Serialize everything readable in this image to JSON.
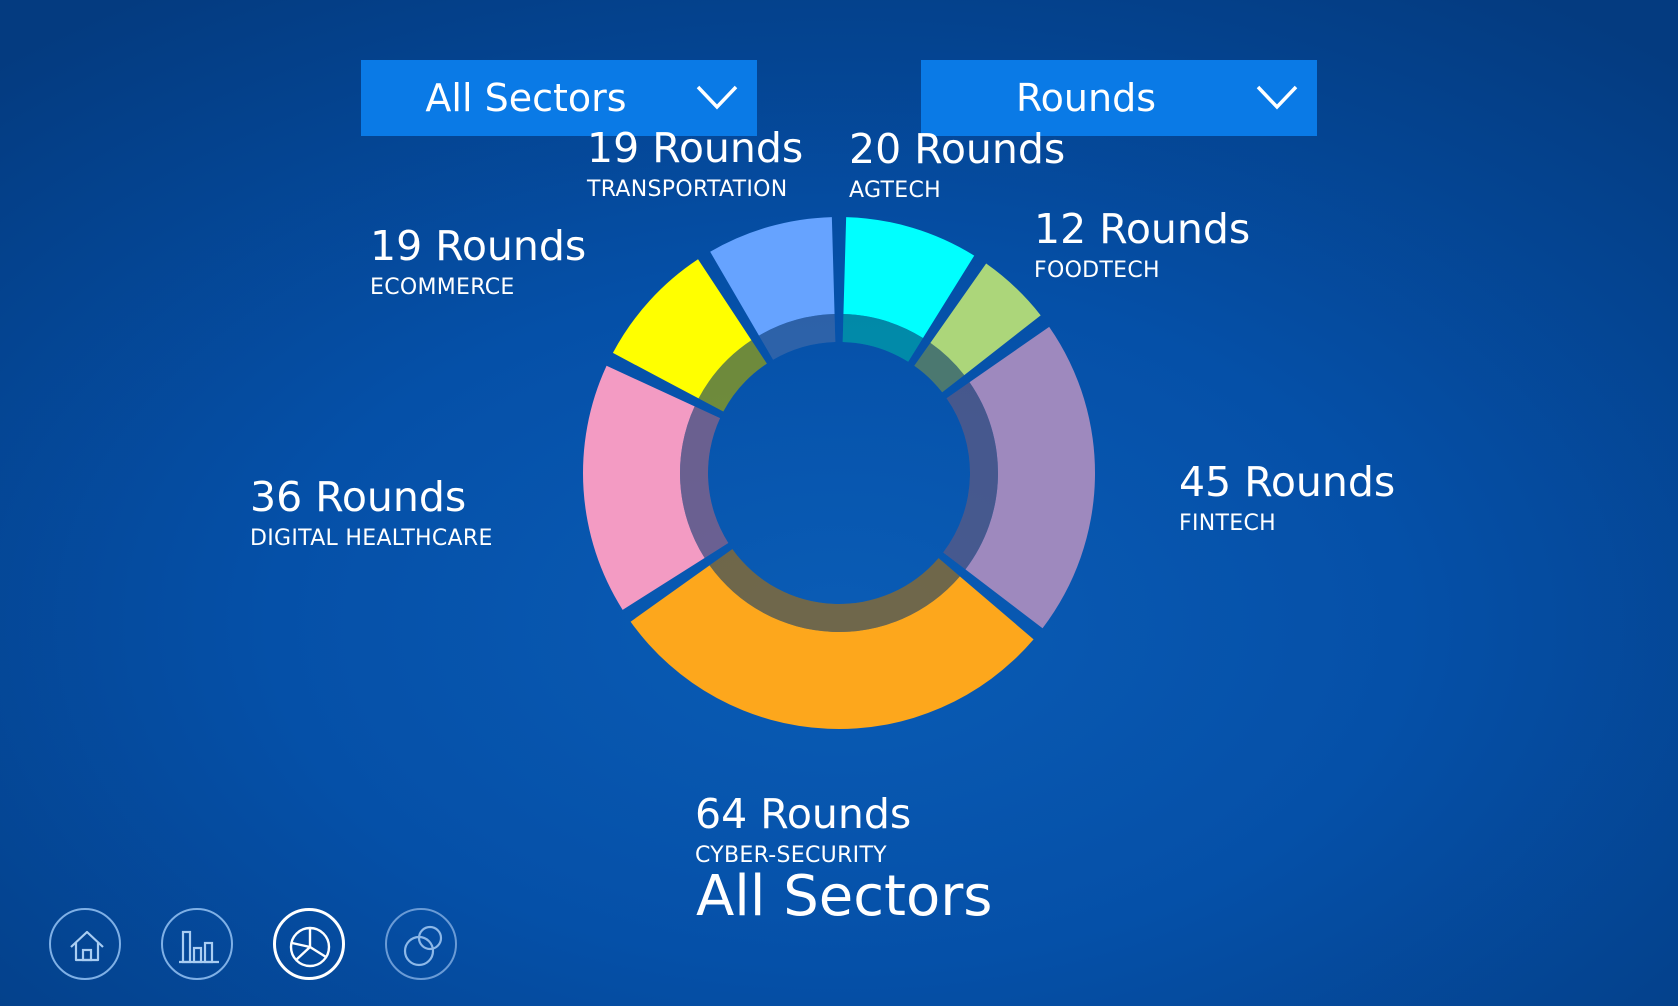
{
  "filters": {
    "sector": {
      "selected": "All Sectors"
    },
    "metric": {
      "selected": "Rounds"
    }
  },
  "nav": [
    {
      "icon": "home-icon",
      "active": false
    },
    {
      "icon": "bar-chart-icon",
      "active": false
    },
    {
      "icon": "pie-chart-icon",
      "active": true
    },
    {
      "icon": "venn-icon",
      "active": false
    }
  ],
  "chart_data": {
    "type": "pie",
    "variant": "donut",
    "title": "All Sectors",
    "slices": [
      {
        "label": "AGTECH",
        "value": 20,
        "value_text": "20 Rounds",
        "color": "#00FFFF"
      },
      {
        "label": "FOODTECH",
        "value": 12,
        "value_text": "12 Rounds",
        "color": "#ACD67A"
      },
      {
        "label": "FINTECH",
        "value": 45,
        "value_text": "45 Rounds",
        "color": "#9E89BE"
      },
      {
        "label": "CYBER-SECURITY",
        "value": 64,
        "value_text": "64 Rounds",
        "color": "#FDA71C"
      },
      {
        "label": "DIGITAL HEALTHCARE",
        "value": 36,
        "value_text": "36 Rounds",
        "color": "#F39BC3"
      },
      {
        "label": "ECOMMERCE",
        "value": 19,
        "value_text": "19 Rounds",
        "color": "#FFFF00"
      },
      {
        "label": "TRANSPORTATION",
        "value": 19,
        "value_text": "19 Rounds",
        "color": "#66A3FF"
      }
    ]
  }
}
